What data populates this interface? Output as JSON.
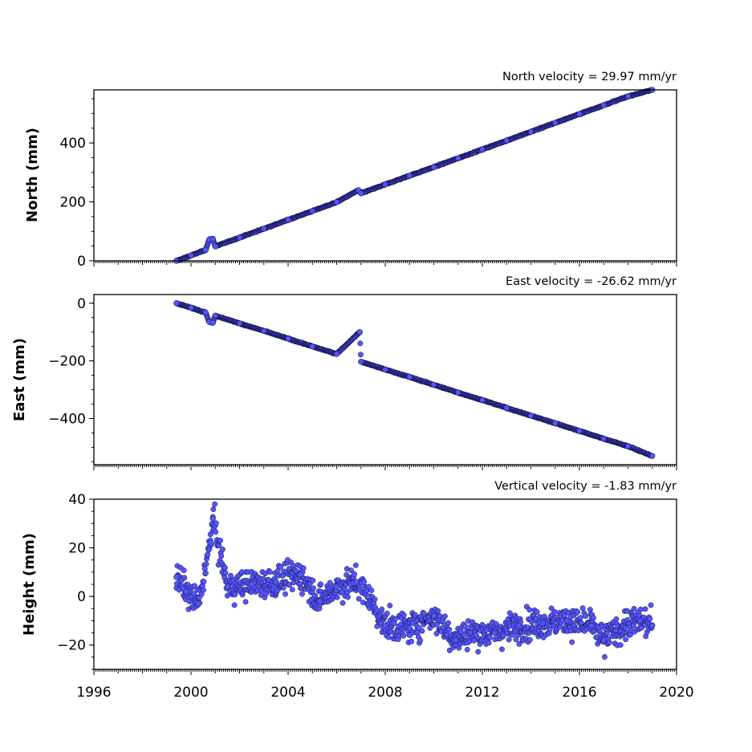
{
  "chart_data": [
    {
      "type": "scatter",
      "ylabel": "North (mm)",
      "annotation": "North velocity = 29.97 mm/yr",
      "velocity_mm_per_yr": 29.97,
      "xlim": [
        1996,
        2020
      ],
      "ylim": [
        0,
        580
      ],
      "yticks": [
        0,
        200,
        400
      ],
      "ytick_labels": [
        "0",
        "200",
        "400"
      ],
      "series": [
        {
          "x": [
            1999.4,
            2000.0,
            2000.6,
            2000.75,
            2000.9,
            2001.0,
            2002.0,
            2003.0,
            2004.0,
            2005.0,
            2006.0,
            2006.9,
            2007.0,
            2008.0,
            2009.0,
            2010.0,
            2011.0,
            2012.0,
            2013.0,
            2014.0,
            2015.0,
            2016.0,
            2017.0,
            2018.0,
            2019.0
          ],
          "y": [
            0,
            18,
            37,
            72,
            75,
            49,
            79,
            109,
            139,
            169,
            199,
            240,
            229,
            259,
            289,
            318,
            348,
            378,
            408,
            438,
            468,
            498,
            528,
            558,
            580
          ]
        }
      ],
      "marker_color": "#5555ff"
    },
    {
      "type": "scatter",
      "ylabel": "East (mm)",
      "annotation": "East velocity = -26.62 mm/yr",
      "velocity_mm_per_yr": -26.62,
      "xlim": [
        1996,
        2020
      ],
      "ylim": [
        -560,
        30
      ],
      "yticks": [
        0,
        -200,
        -400
      ],
      "ytick_labels": [
        "0",
        "−200",
        "−400"
      ],
      "series": [
        {
          "x": [
            1999.4,
            2000.0,
            2000.6,
            2000.75,
            2000.9,
            2001.0,
            2002.0,
            2003.0,
            2004.0,
            2005.0,
            2006.0,
            2006.95,
            2007.0,
            2008.0,
            2009.0,
            2010.0,
            2011.0,
            2012.0,
            2013.0,
            2014.0,
            2015.0,
            2016.0,
            2017.0,
            2018.0,
            2019.0
          ],
          "y": [
            0,
            -16,
            -32,
            -65,
            -68,
            -43,
            -70,
            -96,
            -123,
            -150,
            -176,
            -100,
            -203,
            -230,
            -256,
            -283,
            -310,
            -336,
            -363,
            -390,
            -416,
            -443,
            -470,
            -496,
            -530
          ]
        }
      ],
      "marker_color": "#5555ff"
    },
    {
      "type": "scatter",
      "ylabel": "Height (mm)",
      "annotation": "Vertical velocity = -1.83 mm/yr",
      "velocity_mm_per_yr": -1.83,
      "xlim": [
        1996,
        2020
      ],
      "ylim": [
        -30,
        40
      ],
      "yticks": [
        40,
        20,
        0,
        -20
      ],
      "ytick_labels": [
        "40",
        "20",
        "0",
        "−20"
      ],
      "xticks": [
        1996,
        2000,
        2004,
        2008,
        2012,
        2016,
        2020
      ],
      "xtick_labels": [
        "1996",
        "2000",
        "2004",
        "2008",
        "2012",
        "2016",
        "2020"
      ],
      "series": [
        {
          "x": [
            1999.4,
            1999.8,
            2000.3,
            2000.8,
            2000.9,
            2001.5,
            2002.5,
            2003.5,
            2004.5,
            2005.3,
            2006.0,
            2006.8,
            2007.3,
            2008.0,
            2009.0,
            2010.0,
            2010.9,
            2011.5,
            2012.5,
            2013.5,
            2014.5,
            2015.5,
            2016.5,
            2017.0,
            2017.5,
            2018.5,
            2019.0
          ],
          "y": [
            8,
            2,
            -3,
            22,
            32,
            4,
            5,
            6,
            9,
            -2,
            4,
            6,
            0,
            -12,
            -13,
            -8,
            -18,
            -15,
            -15,
            -12,
            -11,
            -10,
            -12,
            -18,
            -14,
            -10,
            -12
          ]
        }
      ],
      "marker_color": "#5555ff"
    }
  ]
}
